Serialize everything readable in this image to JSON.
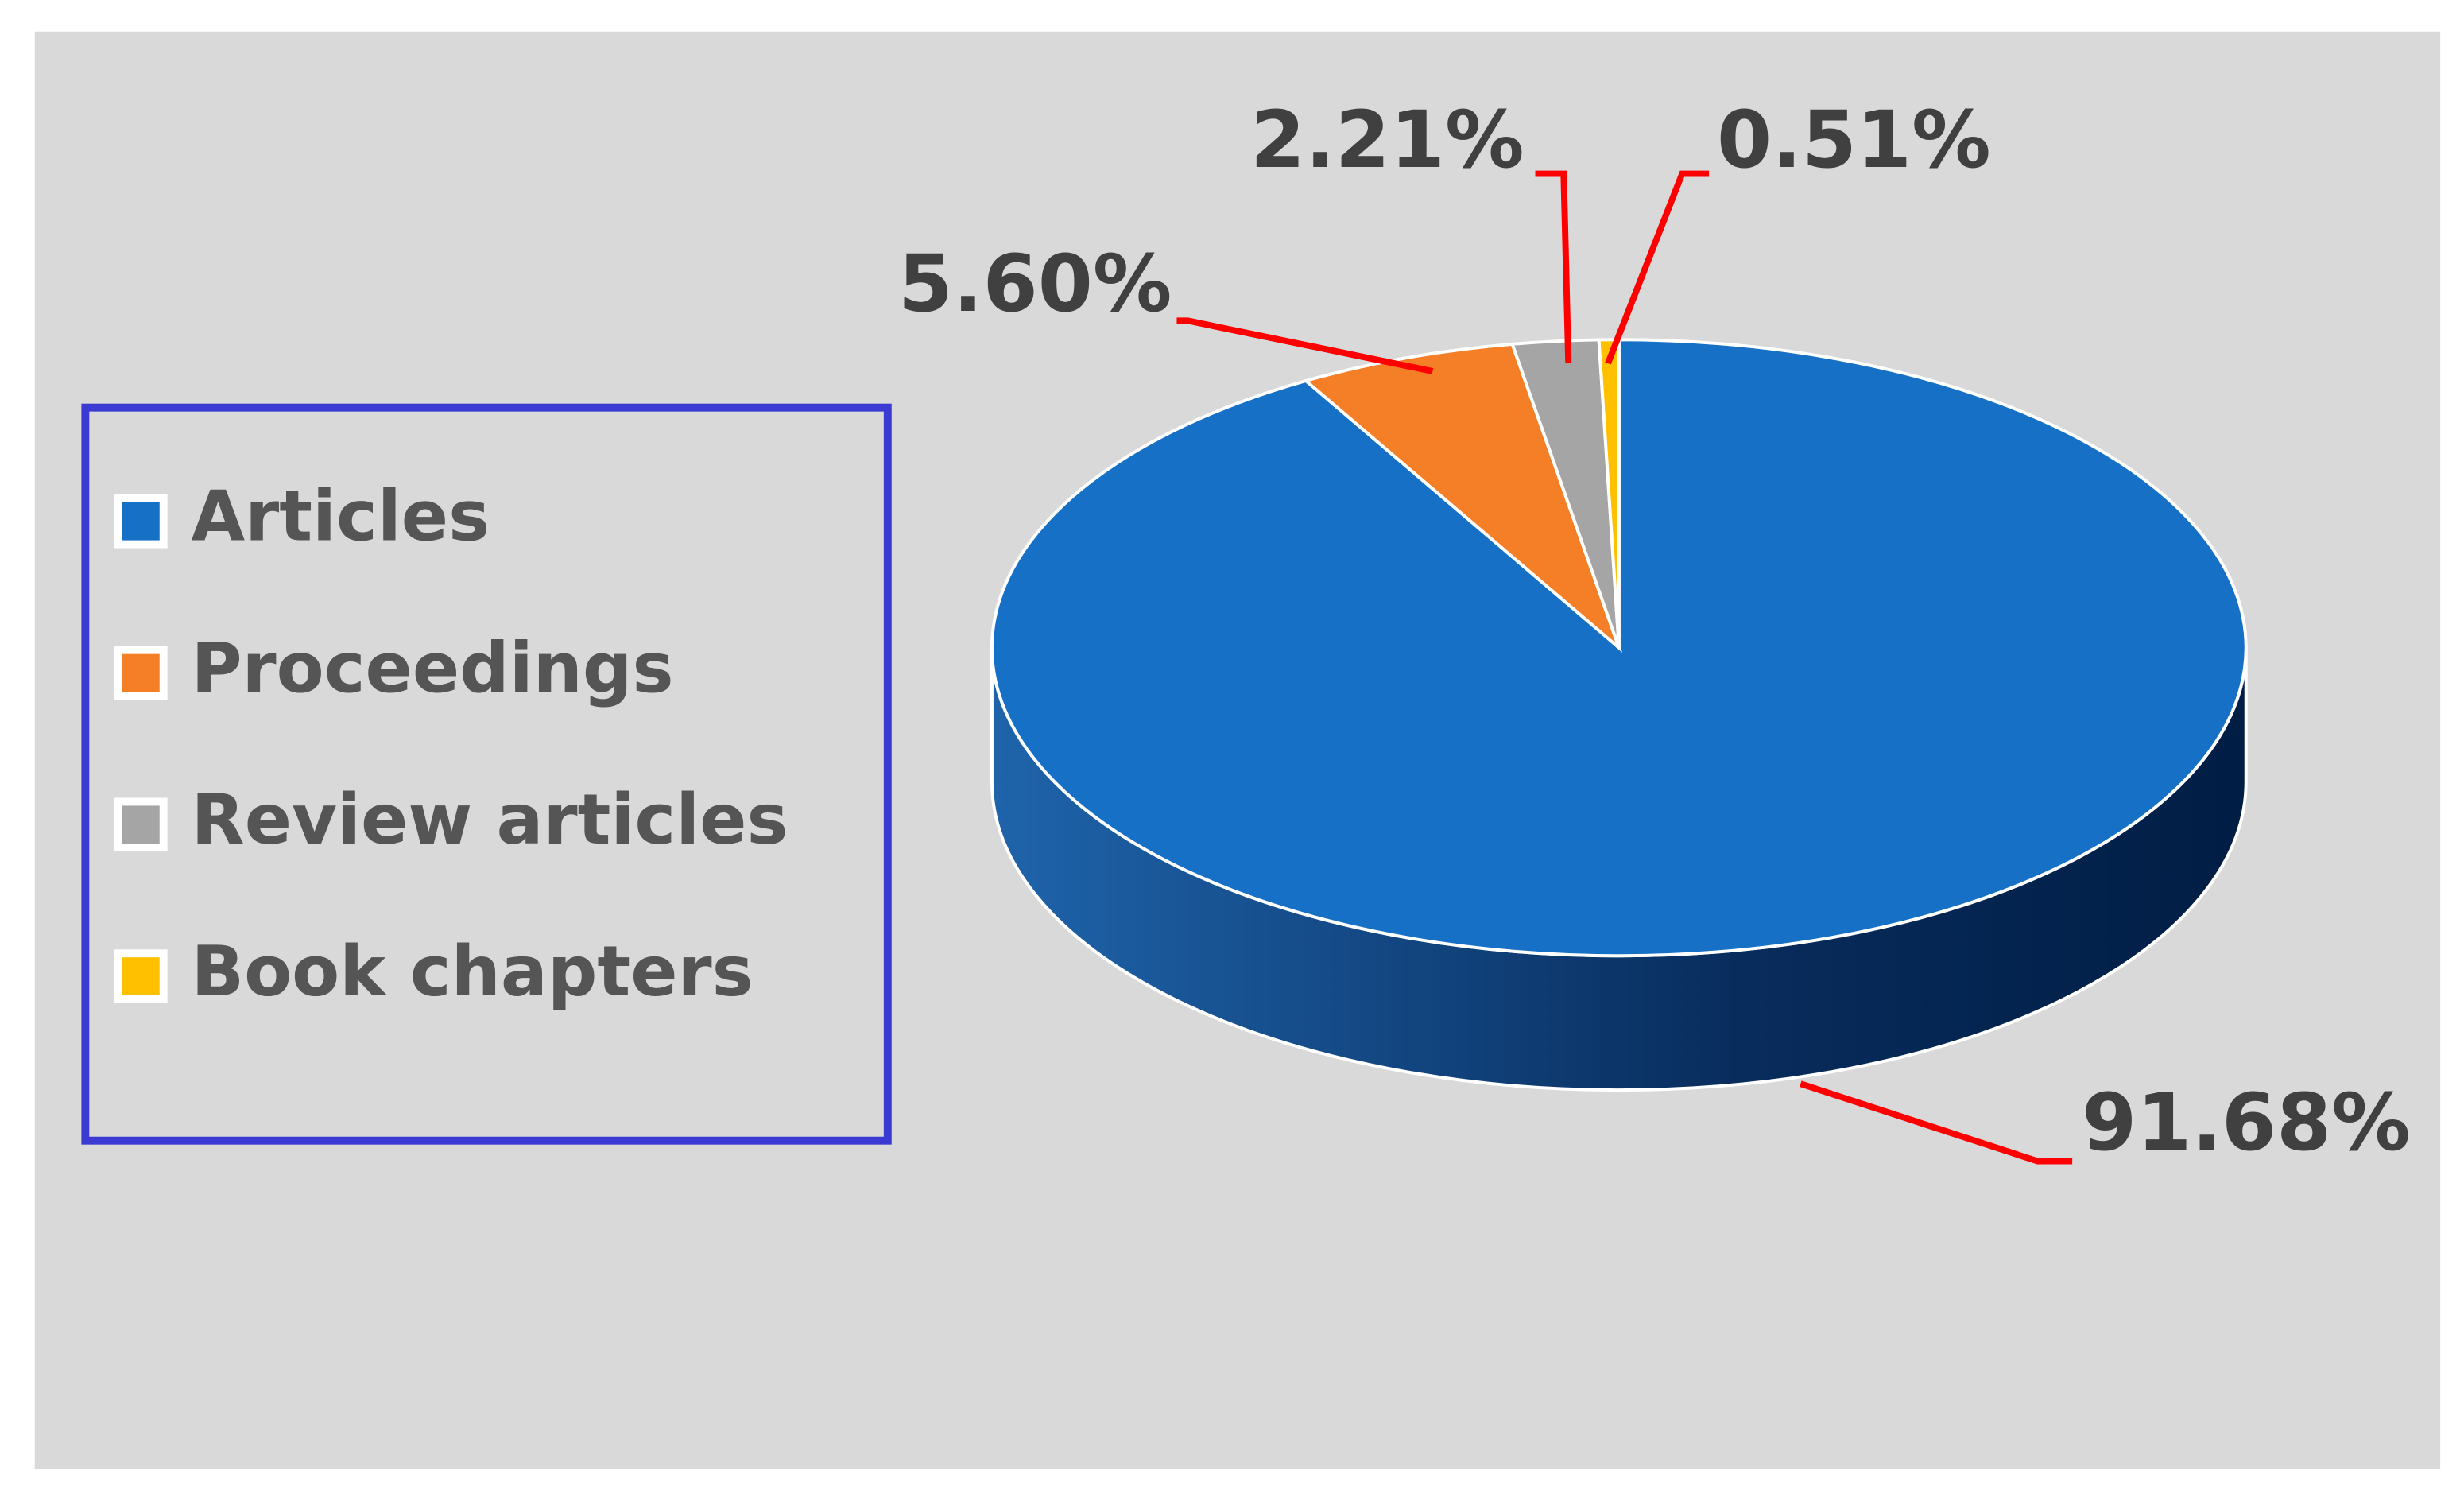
{
  "chart_data": {
    "type": "pie",
    "categories": [
      "Articles",
      "Proceedings",
      "Review articles",
      "Book chapters"
    ],
    "values": [
      91.68,
      5.6,
      2.21,
      0.51
    ],
    "value_labels": [
      "91.68%",
      "5.60%",
      "2.21%",
      "0.51%"
    ],
    "colors": [
      "#1570c6",
      "#f47f26",
      "#a5a5a5",
      "#ffc000"
    ],
    "legend": "left"
  }
}
